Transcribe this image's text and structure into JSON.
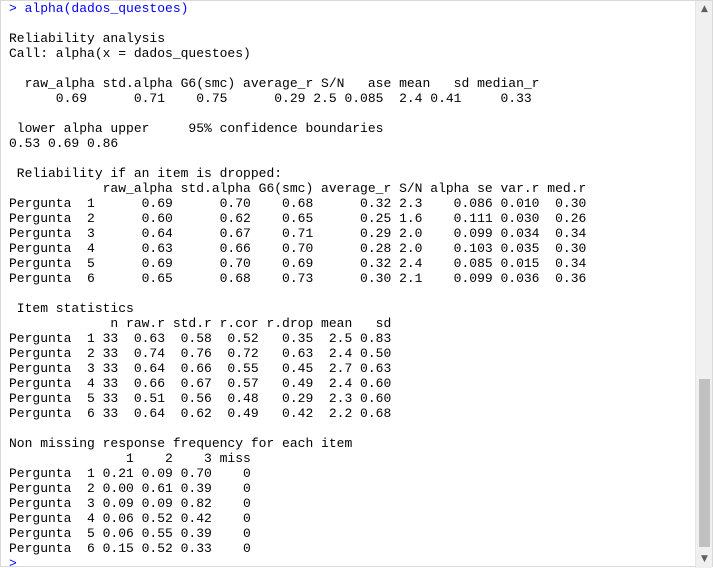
{
  "console": {
    "lines": [
      {
        "text": "> alpha(dados_questoes)",
        "kind": "command"
      },
      {
        "text": "",
        "kind": "output"
      },
      {
        "text": "Reliability analysis",
        "kind": "output"
      },
      {
        "text": "Call: alpha(x = dados_questoes)",
        "kind": "output"
      },
      {
        "text": "",
        "kind": "output"
      },
      {
        "text": "  raw_alpha std.alpha G6(smc) average_r S/N   ase mean   sd median_r",
        "kind": "output"
      },
      {
        "text": "      0.69      0.71    0.75      0.29 2.5 0.085  2.4 0.41     0.33",
        "kind": "output"
      },
      {
        "text": "",
        "kind": "output"
      },
      {
        "text": " lower alpha upper     95% confidence boundaries",
        "kind": "output"
      },
      {
        "text": "0.53 0.69 0.86",
        "kind": "output"
      },
      {
        "text": "",
        "kind": "output"
      },
      {
        "text": " Reliability if an item is dropped:",
        "kind": "output"
      },
      {
        "text": "            raw_alpha std.alpha G6(smc) average_r S/N alpha se var.r med.r",
        "kind": "output"
      },
      {
        "text": "Pergunta  1      0.69      0.70    0.68      0.32 2.3    0.086 0.010  0.30",
        "kind": "output"
      },
      {
        "text": "Pergunta  2      0.60      0.62    0.65      0.25 1.6    0.111 0.030  0.26",
        "kind": "output"
      },
      {
        "text": "Pergunta  3      0.64      0.67    0.71      0.29 2.0    0.099 0.034  0.34",
        "kind": "output"
      },
      {
        "text": "Pergunta  4      0.63      0.66    0.70      0.28 2.0    0.103 0.035  0.30",
        "kind": "output"
      },
      {
        "text": "Pergunta  5      0.69      0.70    0.69      0.32 2.4    0.085 0.015  0.34",
        "kind": "output"
      },
      {
        "text": "Pergunta  6      0.65      0.68    0.73      0.30 2.1    0.099 0.036  0.36",
        "kind": "output"
      },
      {
        "text": "",
        "kind": "output"
      },
      {
        "text": " Item statistics",
        "kind": "output"
      },
      {
        "text": "             n raw.r std.r r.cor r.drop mean   sd",
        "kind": "output"
      },
      {
        "text": "Pergunta  1 33  0.63  0.58  0.52   0.35  2.5 0.83",
        "kind": "output"
      },
      {
        "text": "Pergunta  2 33  0.74  0.76  0.72   0.63  2.4 0.50",
        "kind": "output"
      },
      {
        "text": "Pergunta  3 33  0.64  0.66  0.55   0.45  2.7 0.63",
        "kind": "output"
      },
      {
        "text": "Pergunta  4 33  0.66  0.67  0.57   0.49  2.4 0.60",
        "kind": "output"
      },
      {
        "text": "Pergunta  5 33  0.51  0.56  0.48   0.29  2.3 0.60",
        "kind": "output"
      },
      {
        "text": "Pergunta  6 33  0.64  0.62  0.49   0.42  2.2 0.68",
        "kind": "output"
      },
      {
        "text": "",
        "kind": "output"
      },
      {
        "text": "Non missing response frequency for each item",
        "kind": "output"
      },
      {
        "text": "               1    2    3 miss",
        "kind": "output"
      },
      {
        "text": "Pergunta  1 0.21 0.09 0.70    0",
        "kind": "output"
      },
      {
        "text": "Pergunta  2 0.00 0.61 0.39    0",
        "kind": "output"
      },
      {
        "text": "Pergunta  3 0.09 0.09 0.82    0",
        "kind": "output"
      },
      {
        "text": "Pergunta  4 0.06 0.52 0.42    0",
        "kind": "output"
      },
      {
        "text": "Pergunta  5 0.06 0.55 0.39    0",
        "kind": "output"
      },
      {
        "text": "Pergunta  6 0.15 0.52 0.33    0",
        "kind": "output"
      },
      {
        "text": "> ",
        "kind": "prompt"
      }
    ]
  },
  "scrollbar": {
    "up_icon": "scroll-up-arrow",
    "down_icon": "scroll-down-arrow",
    "up_glyph": "▲",
    "down_glyph": "▼"
  },
  "colors": {
    "command": "#0000ff",
    "output": "#000000",
    "background": "#ffffff"
  }
}
